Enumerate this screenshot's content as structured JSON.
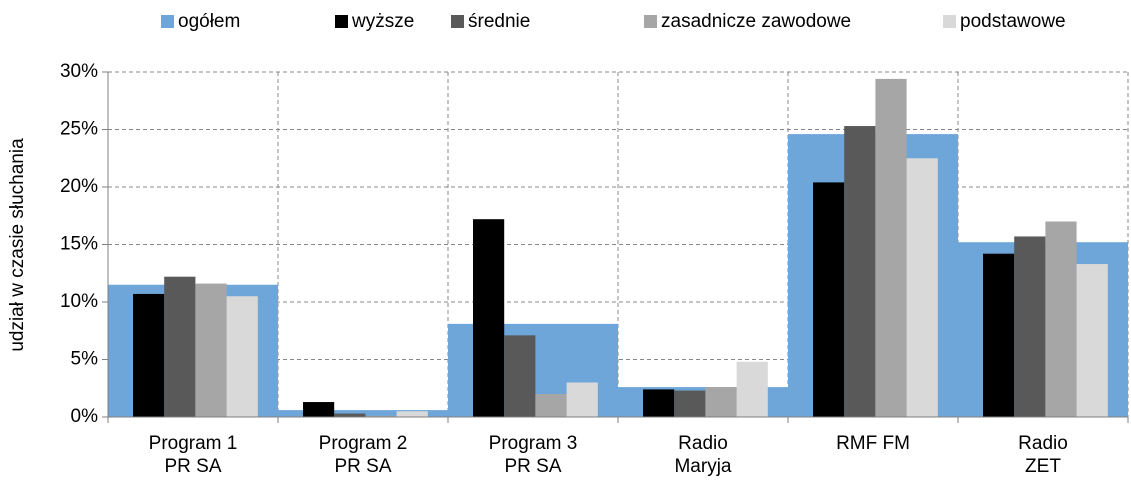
{
  "chart_data": {
    "type": "bar",
    "y_label": "udział w czasie słuchania",
    "categories": [
      "Program 1\nPR SA",
      "Program 2\nPR SA",
      "Program 3\nPR SA",
      "Radio\nMaryja",
      "RMF FM",
      "Radio\nZET"
    ],
    "series": [
      {
        "name": "ogółem",
        "color": "#6ea6da",
        "values": [
          11.5,
          0.6,
          8.1,
          2.6,
          24.6,
          15.2
        ]
      },
      {
        "name": "wyższe",
        "color": "#000000",
        "values": [
          10.7,
          1.3,
          17.2,
          2.4,
          20.4,
          14.2
        ]
      },
      {
        "name": "średnie",
        "color": "#595959",
        "values": [
          12.2,
          0.3,
          7.1,
          2.3,
          25.3,
          15.7
        ]
      },
      {
        "name": "zasadnicze zawodowe",
        "color": "#a6a6a6",
        "values": [
          11.6,
          0.1,
          2.0,
          2.6,
          29.4,
          17.0
        ]
      },
      {
        "name": "podstawowe",
        "color": "#d9d9d9",
        "values": [
          10.5,
          0.5,
          3.0,
          4.8,
          22.5,
          13.3
        ]
      }
    ],
    "ylim": [
      0,
      30
    ],
    "yticks": [
      {
        "value": 0,
        "label": "0%"
      },
      {
        "value": 5,
        "label": "5%"
      },
      {
        "value": 10,
        "label": "10%"
      },
      {
        "value": 15,
        "label": "15%"
      },
      {
        "value": 20,
        "label": "20%"
      },
      {
        "value": 25,
        "label": "25%"
      },
      {
        "value": 30,
        "label": "30%"
      }
    ],
    "grid": true,
    "legend": "top"
  }
}
